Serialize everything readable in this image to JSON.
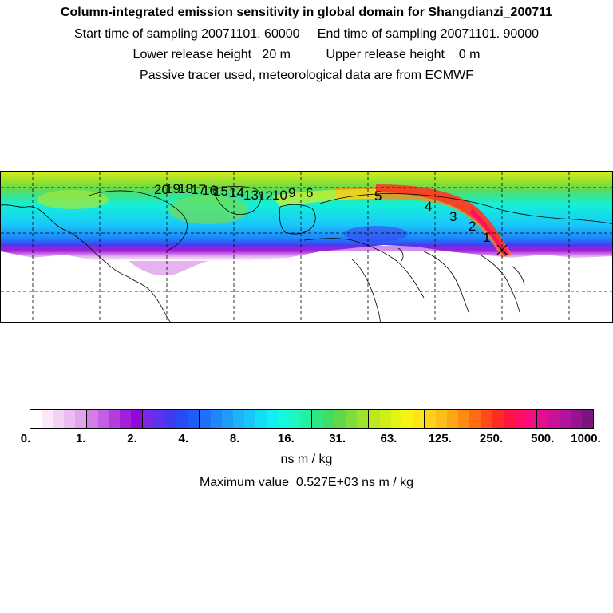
{
  "title": {
    "line1": "Column-integrated emission sensitivity in global domain for Shangdianzi_200711",
    "line2": "Start time of sampling 20071101. 60000     End time of sampling 20071101. 90000",
    "line3": "Lower release height   20 m          Upper release height    0 m",
    "line4": "Passive tracer used, meteorological data are from ECMWF"
  },
  "map": {
    "trajectory_labels": [
      "1",
      "2",
      "3",
      "4",
      "5",
      "6",
      "9",
      "10",
      "12",
      "13",
      "14",
      "15",
      "16",
      "17",
      "18",
      "19",
      "20"
    ]
  },
  "colorbar": {
    "colors": [
      "#ffffff",
      "#fbe9fb",
      "#f3d2f6",
      "#ebbcf1",
      "#e2a5ec",
      "#d37ee8",
      "#c35fe4",
      "#b23ee0",
      "#a21fdc",
      "#9109d8",
      "#7a28e8",
      "#5c32ec",
      "#3f3cf0",
      "#2a4af4",
      "#1e5bf8",
      "#1e70fa",
      "#1f86fb",
      "#1f9cfb",
      "#1eb2fb",
      "#19c6fb",
      "#14ddf8",
      "#12eef2",
      "#14f9de",
      "#1ef7c3",
      "#22f0a2",
      "#2ee683",
      "#40dc64",
      "#5fd84a",
      "#80dc3a",
      "#9fe22c",
      "#bce820",
      "#d2ee18",
      "#e6f414",
      "#f6f414",
      "#fde51a",
      "#fed21c",
      "#ffbd1a",
      "#ffa617",
      "#ff8a14",
      "#ff6c13",
      "#ff4b17",
      "#ff2c23",
      "#ff1642",
      "#ff0f66",
      "#f60f7f",
      "#e30f8f",
      "#cb119a",
      "#b2129e",
      "#971391",
      "#7c1480"
    ],
    "ticks": [
      "0.",
      "1.",
      "2.",
      "4.",
      "8.",
      "16.",
      "31.",
      "63.",
      "125.",
      "250.",
      "500.",
      "1000."
    ],
    "unit": "ns m / kg",
    "max_value_text": "Maximum value  0.527E+03 ns m / kg"
  }
}
